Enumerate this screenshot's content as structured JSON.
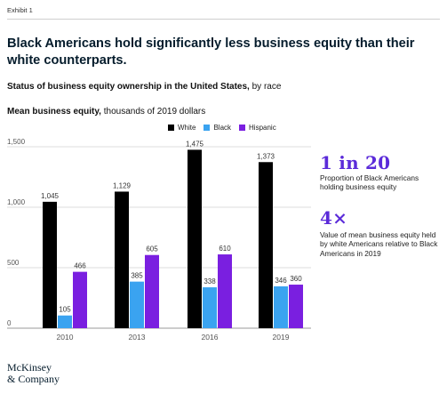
{
  "header": {
    "exhibit": "Exhibit 1",
    "title": "Black Americans hold significantly less business equity than their white counterparts.",
    "subtitle_bold": "Status of business equity ownership in the United States,",
    "subtitle_rest": " by race",
    "measure_bold": "Mean business equity,",
    "measure_rest": " thousands of 2019 dollars"
  },
  "callouts": [
    {
      "big": "1 in 20",
      "text": "Proportion of Black Americans holding business equity"
    },
    {
      "big": "4×",
      "text": "Value of mean business equity held by white Americans relative to Black Americans in 2019"
    }
  ],
  "logo": {
    "line1": "McKinsey",
    "line2": "& Company"
  },
  "colors": {
    "white_series": "#000000",
    "black_series": "#3aa3f0",
    "hispanic_series": "#7a1fe0",
    "accent": "#5b2bd9"
  },
  "chart_data": {
    "type": "bar",
    "categories": [
      "2010",
      "2013",
      "2016",
      "2019"
    ],
    "series": [
      {
        "name": "White",
        "values": [
          1045,
          1129,
          1475,
          1373
        ]
      },
      {
        "name": "Black",
        "values": [
          105,
          385,
          338,
          346
        ]
      },
      {
        "name": "Hispanic",
        "values": [
          466,
          605,
          610,
          360
        ]
      }
    ],
    "yticks": [
      "0",
      "500",
      "1,000",
      "1,500"
    ],
    "ylim": [
      0,
      1500
    ],
    "grid": true,
    "legend": "top"
  }
}
